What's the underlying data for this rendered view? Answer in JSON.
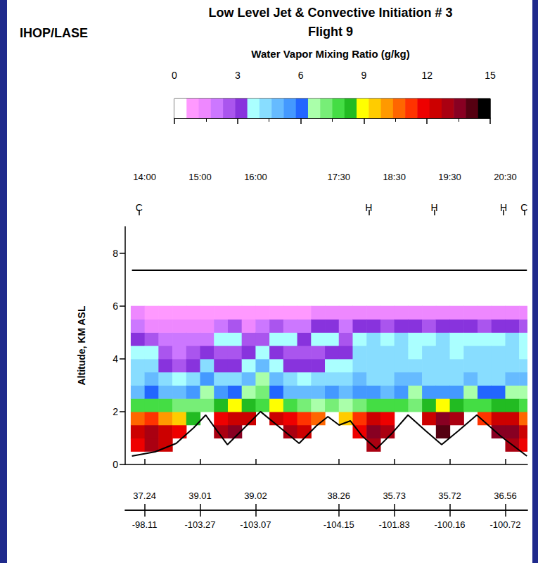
{
  "chart_data": {
    "type": "heatmap",
    "title": "Low Level Jet & Convective Initiation # 3",
    "subtitle": "Flight 9",
    "annotation": "IHOP/LASE",
    "ylabel": "Altitude, KM ASL",
    "xlim": [
      13.65,
      20.9
    ],
    "xticks": [
      {
        "value": 14,
        "label": "14:00"
      },
      {
        "value": 15,
        "label": "15:00"
      },
      {
        "value": 16,
        "label": "16:00"
      },
      {
        "value": 17.5,
        "label": "17:30"
      },
      {
        "value": 18.5,
        "label": "18:30"
      },
      {
        "value": 19.5,
        "label": "19:30"
      },
      {
        "value": 20.5,
        "label": "20:30"
      }
    ],
    "ylim": [
      0,
      9
    ],
    "yticks": [
      0,
      2,
      4,
      6,
      8
    ],
    "grid": false,
    "markers": {
      "x": [
        13.9,
        18.04,
        19.22,
        20.47,
        20.84
      ],
      "labels": [
        "C",
        "H",
        "H",
        "H",
        "C"
      ]
    },
    "positions": {
      "x": [
        14,
        15,
        16,
        17.5,
        18.5,
        19.5,
        20.5
      ],
      "latitude": [
        37.24,
        39.01,
        39.02,
        38.26,
        35.73,
        35.72,
        36.56
      ],
      "longitude": [
        -98.11,
        -103.27,
        -103.07,
        -104.15,
        -101.83,
        -100.16,
        -100.72
      ]
    },
    "colorbar": {
      "label": "Water Vapor Mixing Ratio (g/kg)",
      "range": [
        0,
        15
      ],
      "ticks": [
        0,
        3,
        6,
        9,
        12,
        15
      ],
      "colors": [
        "#ffffff",
        "#ff99ff",
        "#ee88ff",
        "#cc77ff",
        "#aa55ee",
        "#8833dd",
        "#aaffff",
        "#88ddff",
        "#66bbff",
        "#4499ff",
        "#2266ff",
        "#aaffaa",
        "#77ee77",
        "#44dd44",
        "#22bb22",
        "#ffff00",
        "#ffcc00",
        "#ff9900",
        "#ff6600",
        "#ff3300",
        "#ee0000",
        "#cc0000",
        "#aa0011",
        "#880022",
        "#550011",
        "#000000"
      ]
    },
    "mixing_ratio": {
      "time": [
        13.875,
        14.125,
        14.375,
        14.625,
        14.875,
        15.125,
        15.375,
        15.625,
        15.875,
        16.125,
        16.375,
        16.625,
        16.875,
        17.125,
        17.375,
        17.625,
        17.875,
        18.125,
        18.375,
        18.625,
        18.875,
        19.125,
        19.375,
        19.625,
        19.875,
        20.125,
        20.375,
        20.625,
        20.875
      ],
      "altitude": [
        0.25,
        0.75,
        1.25,
        1.75,
        2.25,
        2.75,
        3.25,
        3.75,
        4.25,
        4.75,
        5.25,
        5.75
      ],
      "values": [
        [
          null,
          12.0,
          12.5,
          10.5,
          7.5,
          5.0,
          4.5,
          4.3,
          3.7,
          3.0,
          2.0,
          1.2
        ],
        [
          null,
          13.0,
          13.0,
          11.0,
          8.0,
          6.0,
          4.9,
          4.3,
          3.7,
          2.5,
          1.5,
          1.0
        ],
        [
          null,
          12.5,
          12.5,
          10.0,
          7.5,
          5.0,
          4.3,
          3.0,
          2.5,
          2.0,
          1.5,
          1.0
        ],
        [
          null,
          null,
          12.0,
          9.5,
          7.2,
          4.9,
          3.7,
          2.5,
          2.0,
          2.0,
          1.5,
          1.0
        ],
        [
          null,
          null,
          null,
          8.4,
          7.2,
          5.5,
          4.3,
          3.0,
          2.5,
          2.0,
          1.5,
          1.0
        ],
        [
          null,
          null,
          null,
          null,
          7.2,
          6.6,
          5.5,
          4.3,
          3.0,
          2.0,
          1.5,
          1.0
        ],
        [
          null,
          null,
          13.0,
          11.8,
          8.4,
          5.5,
          4.3,
          3.0,
          2.5,
          3.7,
          2.0,
          1.0
        ],
        [
          null,
          null,
          13.6,
          12.4,
          9.0,
          6.0,
          4.3,
          3.0,
          2.5,
          3.7,
          2.5,
          1.0
        ],
        [
          null,
          null,
          null,
          12.4,
          8.4,
          6.6,
          4.9,
          3.7,
          3.0,
          2.5,
          1.5,
          1.0
        ],
        [
          null,
          null,
          null,
          null,
          7.8,
          7.2,
          6.6,
          4.9,
          3.7,
          2.5,
          2.0,
          1.0
        ],
        [
          null,
          null,
          null,
          12.4,
          9.0,
          6.0,
          4.9,
          3.7,
          3.0,
          3.7,
          2.5,
          1.0
        ],
        [
          null,
          null,
          13.0,
          11.8,
          7.8,
          4.9,
          4.3,
          3.0,
          2.5,
          3.7,
          2.0,
          1.0
        ],
        [
          null,
          null,
          12.4,
          11.3,
          7.2,
          4.9,
          3.7,
          3.0,
          2.5,
          3.0,
          2.0,
          1.0
        ],
        [
          null,
          null,
          null,
          10.7,
          6.6,
          4.9,
          4.3,
          3.0,
          2.5,
          3.7,
          3.0,
          1.5
        ],
        [
          null,
          null,
          null,
          null,
          7.2,
          5.5,
          4.3,
          3.7,
          3.0,
          3.7,
          3.0,
          1.5
        ],
        [
          null,
          null,
          null,
          9.5,
          6.6,
          4.9,
          4.3,
          3.7,
          3.0,
          2.5,
          2.0,
          1.5
        ],
        [
          null,
          null,
          11.8,
          11.3,
          7.2,
          5.5,
          4.9,
          4.3,
          4.3,
          3.7,
          3.0,
          1.5
        ],
        [
          null,
          13.0,
          13.6,
          12.4,
          7.8,
          5.5,
          4.3,
          4.3,
          4.3,
          4.3,
          3.0,
          1.5
        ],
        [
          null,
          null,
          13.0,
          11.8,
          7.8,
          4.9,
          4.3,
          4.3,
          4.3,
          3.7,
          2.5,
          1.5
        ],
        [
          null,
          null,
          null,
          null,
          7.8,
          5.5,
          4.9,
          4.3,
          4.3,
          4.3,
          3.0,
          1.5
        ],
        [
          null,
          null,
          null,
          null,
          7.2,
          6.6,
          4.9,
          4.3,
          3.7,
          3.7,
          3.0,
          1.5
        ],
        [
          null,
          null,
          null,
          12.4,
          8.4,
          5.5,
          4.3,
          4.3,
          4.3,
          3.7,
          2.5,
          1.5
        ],
        [
          null,
          null,
          14.2,
          13.6,
          9.0,
          5.5,
          4.3,
          4.3,
          4.3,
          4.3,
          3.0,
          1.5
        ],
        [
          null,
          null,
          null,
          13.0,
          8.4,
          5.5,
          4.3,
          4.3,
          3.7,
          3.7,
          3.0,
          1.5
        ],
        [
          null,
          null,
          null,
          null,
          7.8,
          6.6,
          4.9,
          4.3,
          4.3,
          3.7,
          3.0,
          1.5
        ],
        [
          null,
          null,
          null,
          11.3,
          7.8,
          6.0,
          4.3,
          4.3,
          4.3,
          3.7,
          2.5,
          1.5
        ],
        [
          null,
          null,
          13.6,
          12.4,
          8.4,
          6.0,
          4.3,
          4.3,
          4.3,
          3.7,
          3.0,
          1.5
        ],
        [
          null,
          13.0,
          13.6,
          12.4,
          8.4,
          6.6,
          4.9,
          4.3,
          4.3,
          4.3,
          3.0,
          1.5
        ],
        [
          null,
          11.8,
          12.4,
          10.7,
          7.8,
          6.6,
          4.9,
          4.3,
          3.7,
          3.7,
          2.5,
          1.5
        ]
      ]
    },
    "series": [
      {
        "type": "line",
        "color": "#000000",
        "line_style": "solid",
        "x": [
          13.772,
          14.19,
          14.57,
          14.886,
          15.101,
          15.304,
          15.494,
          15.772,
          16.089,
          16.443,
          16.785,
          17.101,
          17.304,
          17.506,
          17.709,
          17.924,
          18.177,
          18.468,
          18.747,
          19.063,
          19.354,
          19.658,
          19.987,
          20.418,
          20.89
        ],
        "values": [
          0.32,
          0.48,
          0.8,
          1.39,
          1.87,
          1.28,
          0.75,
          1.33,
          2.0,
          1.39,
          0.8,
          1.47,
          1.81,
          1.49,
          1.65,
          1.07,
          0.59,
          1.2,
          1.87,
          1.28,
          0.75,
          1.28,
          1.87,
          1.07,
          0.32
        ]
      },
      {
        "type": "line",
        "color": "#000000",
        "line_style": "solid",
        "x": [
          13.772,
          20.89
        ],
        "values": [
          7.35,
          7.35
        ]
      }
    ]
  }
}
